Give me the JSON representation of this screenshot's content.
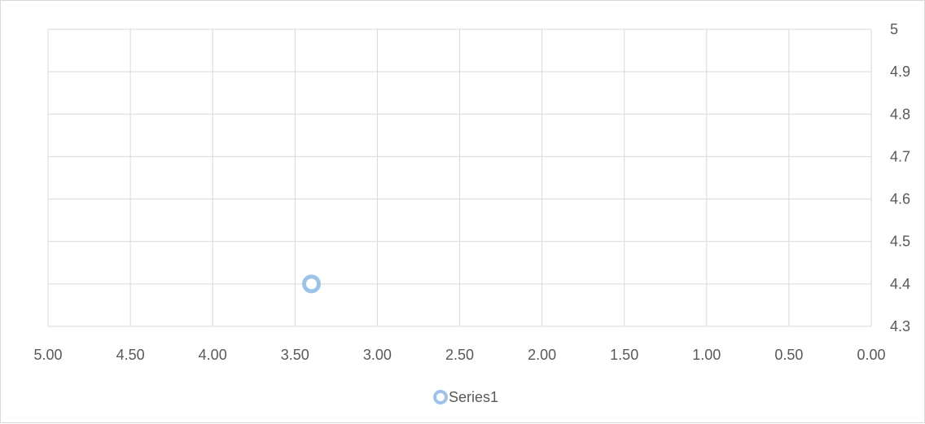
{
  "chart_data": {
    "type": "scatter",
    "title": "",
    "xlabel": "",
    "ylabel": "",
    "x_reversed": true,
    "y_axis_side": "right",
    "xlim": [
      0,
      5
    ],
    "ylim": [
      4.3,
      5
    ],
    "x_ticks": [
      5.0,
      4.5,
      4.0,
      3.5,
      3.0,
      2.5,
      2.0,
      1.5,
      1.0,
      0.5,
      0.0
    ],
    "x_tick_labels": [
      "5.00",
      "4.50",
      "4.00",
      "3.50",
      "3.00",
      "2.50",
      "2.00",
      "1.50",
      "1.00",
      "0.50",
      "0.00"
    ],
    "y_ticks": [
      4.3,
      4.4,
      4.5,
      4.6,
      4.7,
      4.8,
      4.9,
      5
    ],
    "y_tick_labels": [
      "4.3",
      "4.4",
      "4.5",
      "4.6",
      "4.7",
      "4.8",
      "4.9",
      "5"
    ],
    "grid": true,
    "legend_position": "bottom",
    "series": [
      {
        "name": "Series1",
        "color": "#9dc3e6",
        "points": [
          {
            "x": 3.4,
            "y": 4.4
          }
        ]
      }
    ]
  }
}
